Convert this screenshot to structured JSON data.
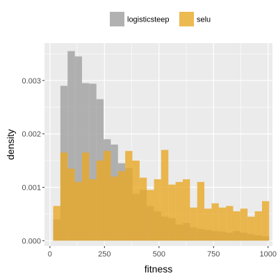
{
  "chart_data": {
    "type": "histogram",
    "xlabel": "fitness",
    "ylabel": "density",
    "xlim": [
      -25,
      1020
    ],
    "ylim": [
      -0.0001,
      0.0037
    ],
    "x_ticks": [
      0,
      250,
      500,
      750,
      1000
    ],
    "x_tick_labels": [
      "0",
      "250",
      "500",
      "750",
      "1000"
    ],
    "y_ticks": [
      0,
      0.001,
      0.002,
      0.003
    ],
    "y_tick_labels": [
      "0.000",
      "0.001",
      "0.002",
      "0.003"
    ],
    "grid": true,
    "legend_position": "top",
    "bin_edges": [
      15,
      48,
      81,
      114,
      147,
      180,
      213,
      246,
      279,
      312,
      345,
      378,
      411,
      444,
      477,
      510,
      543,
      576,
      609,
      642,
      675,
      708,
      741,
      774,
      807,
      840,
      873,
      906,
      939,
      972,
      1005
    ],
    "series": [
      {
        "name": "logisticsteep",
        "color": "#a9a9a9",
        "values": [
          0.0004,
          0.0029,
          0.00355,
          0.00345,
          0.00295,
          0.00294,
          0.00265,
          0.0019,
          0.0018,
          0.00145,
          0.00136,
          0.00088,
          0.00095,
          0.00065,
          0.00055,
          0.00045,
          0.00042,
          0.0003,
          0.00033,
          0.00025,
          0.00022,
          0.0002,
          0.00018,
          0.00017,
          0.00015,
          0.00018,
          0.00015,
          0.00012,
          0.0001,
          8e-05
        ]
      },
      {
        "name": "selu",
        "color": "#e8a825",
        "values": [
          0.00065,
          0.00165,
          0.00135,
          0.0011,
          0.00165,
          0.00115,
          0.0015,
          0.00168,
          0.0012,
          0.0013,
          0.00168,
          0.0015,
          0.00118,
          0.00095,
          0.00115,
          0.0017,
          0.00105,
          0.0011,
          0.00115,
          0.00062,
          0.0011,
          0.0006,
          0.0007,
          0.00062,
          0.00065,
          0.00055,
          0.0006,
          0.00045,
          0.00055,
          0.00074
        ]
      }
    ]
  }
}
